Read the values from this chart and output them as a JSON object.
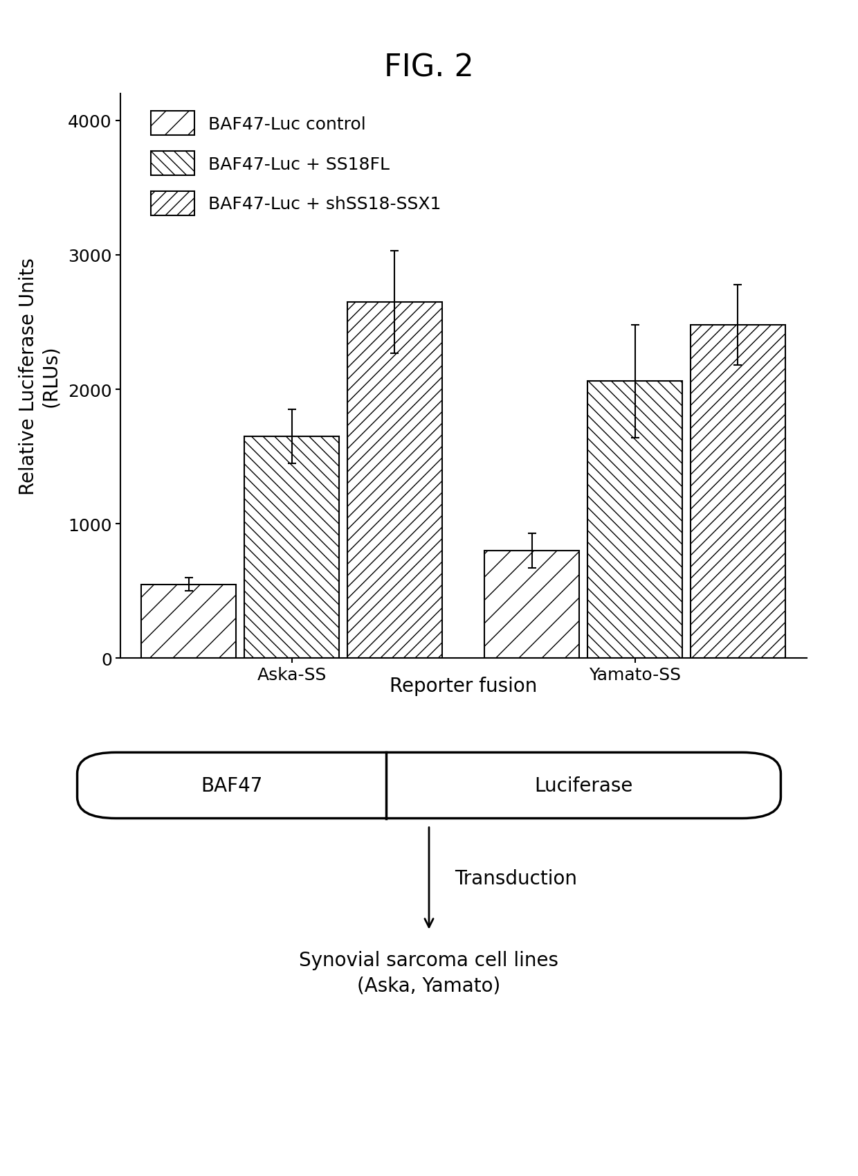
{
  "title": "FIG. 2",
  "ylabel": "Relative Luciferase Units\n(RLUs)",
  "xlabel": "Reporter fusion",
  "groups": [
    "Aska-SS",
    "Yamato-SS"
  ],
  "series_labels": [
    "BAF47-Luc control",
    "BAF47-Luc + SS18FL",
    "BAF47-Luc + shSS18-SSX1"
  ],
  "bar_values": [
    [
      550,
      1650,
      2650
    ],
    [
      800,
      2060,
      2480
    ]
  ],
  "bar_errors": [
    [
      50,
      200,
      380
    ],
    [
      130,
      420,
      300
    ]
  ],
  "ylim": [
    0,
    4200
  ],
  "yticks": [
    0,
    1000,
    2000,
    3000,
    4000
  ],
  "bar_width": 0.18,
  "group_centers": [
    0.3,
    0.9
  ],
  "hatch_patterns": [
    "/",
    "\\\\",
    "//"
  ],
  "facecolor": "white",
  "edgecolor": "black",
  "linewidth": 1.5,
  "title_fontsize": 32,
  "label_fontsize": 20,
  "tick_fontsize": 18,
  "legend_fontsize": 18,
  "diagram_baf47_label": "BAF47",
  "diagram_luciferase_label": "Luciferase",
  "diagram_transduction_label": "Transduction",
  "diagram_bottom_label": "Synovial sarcoma cell lines\n(Aska, Yamato)",
  "diagram_fontsize": 20
}
